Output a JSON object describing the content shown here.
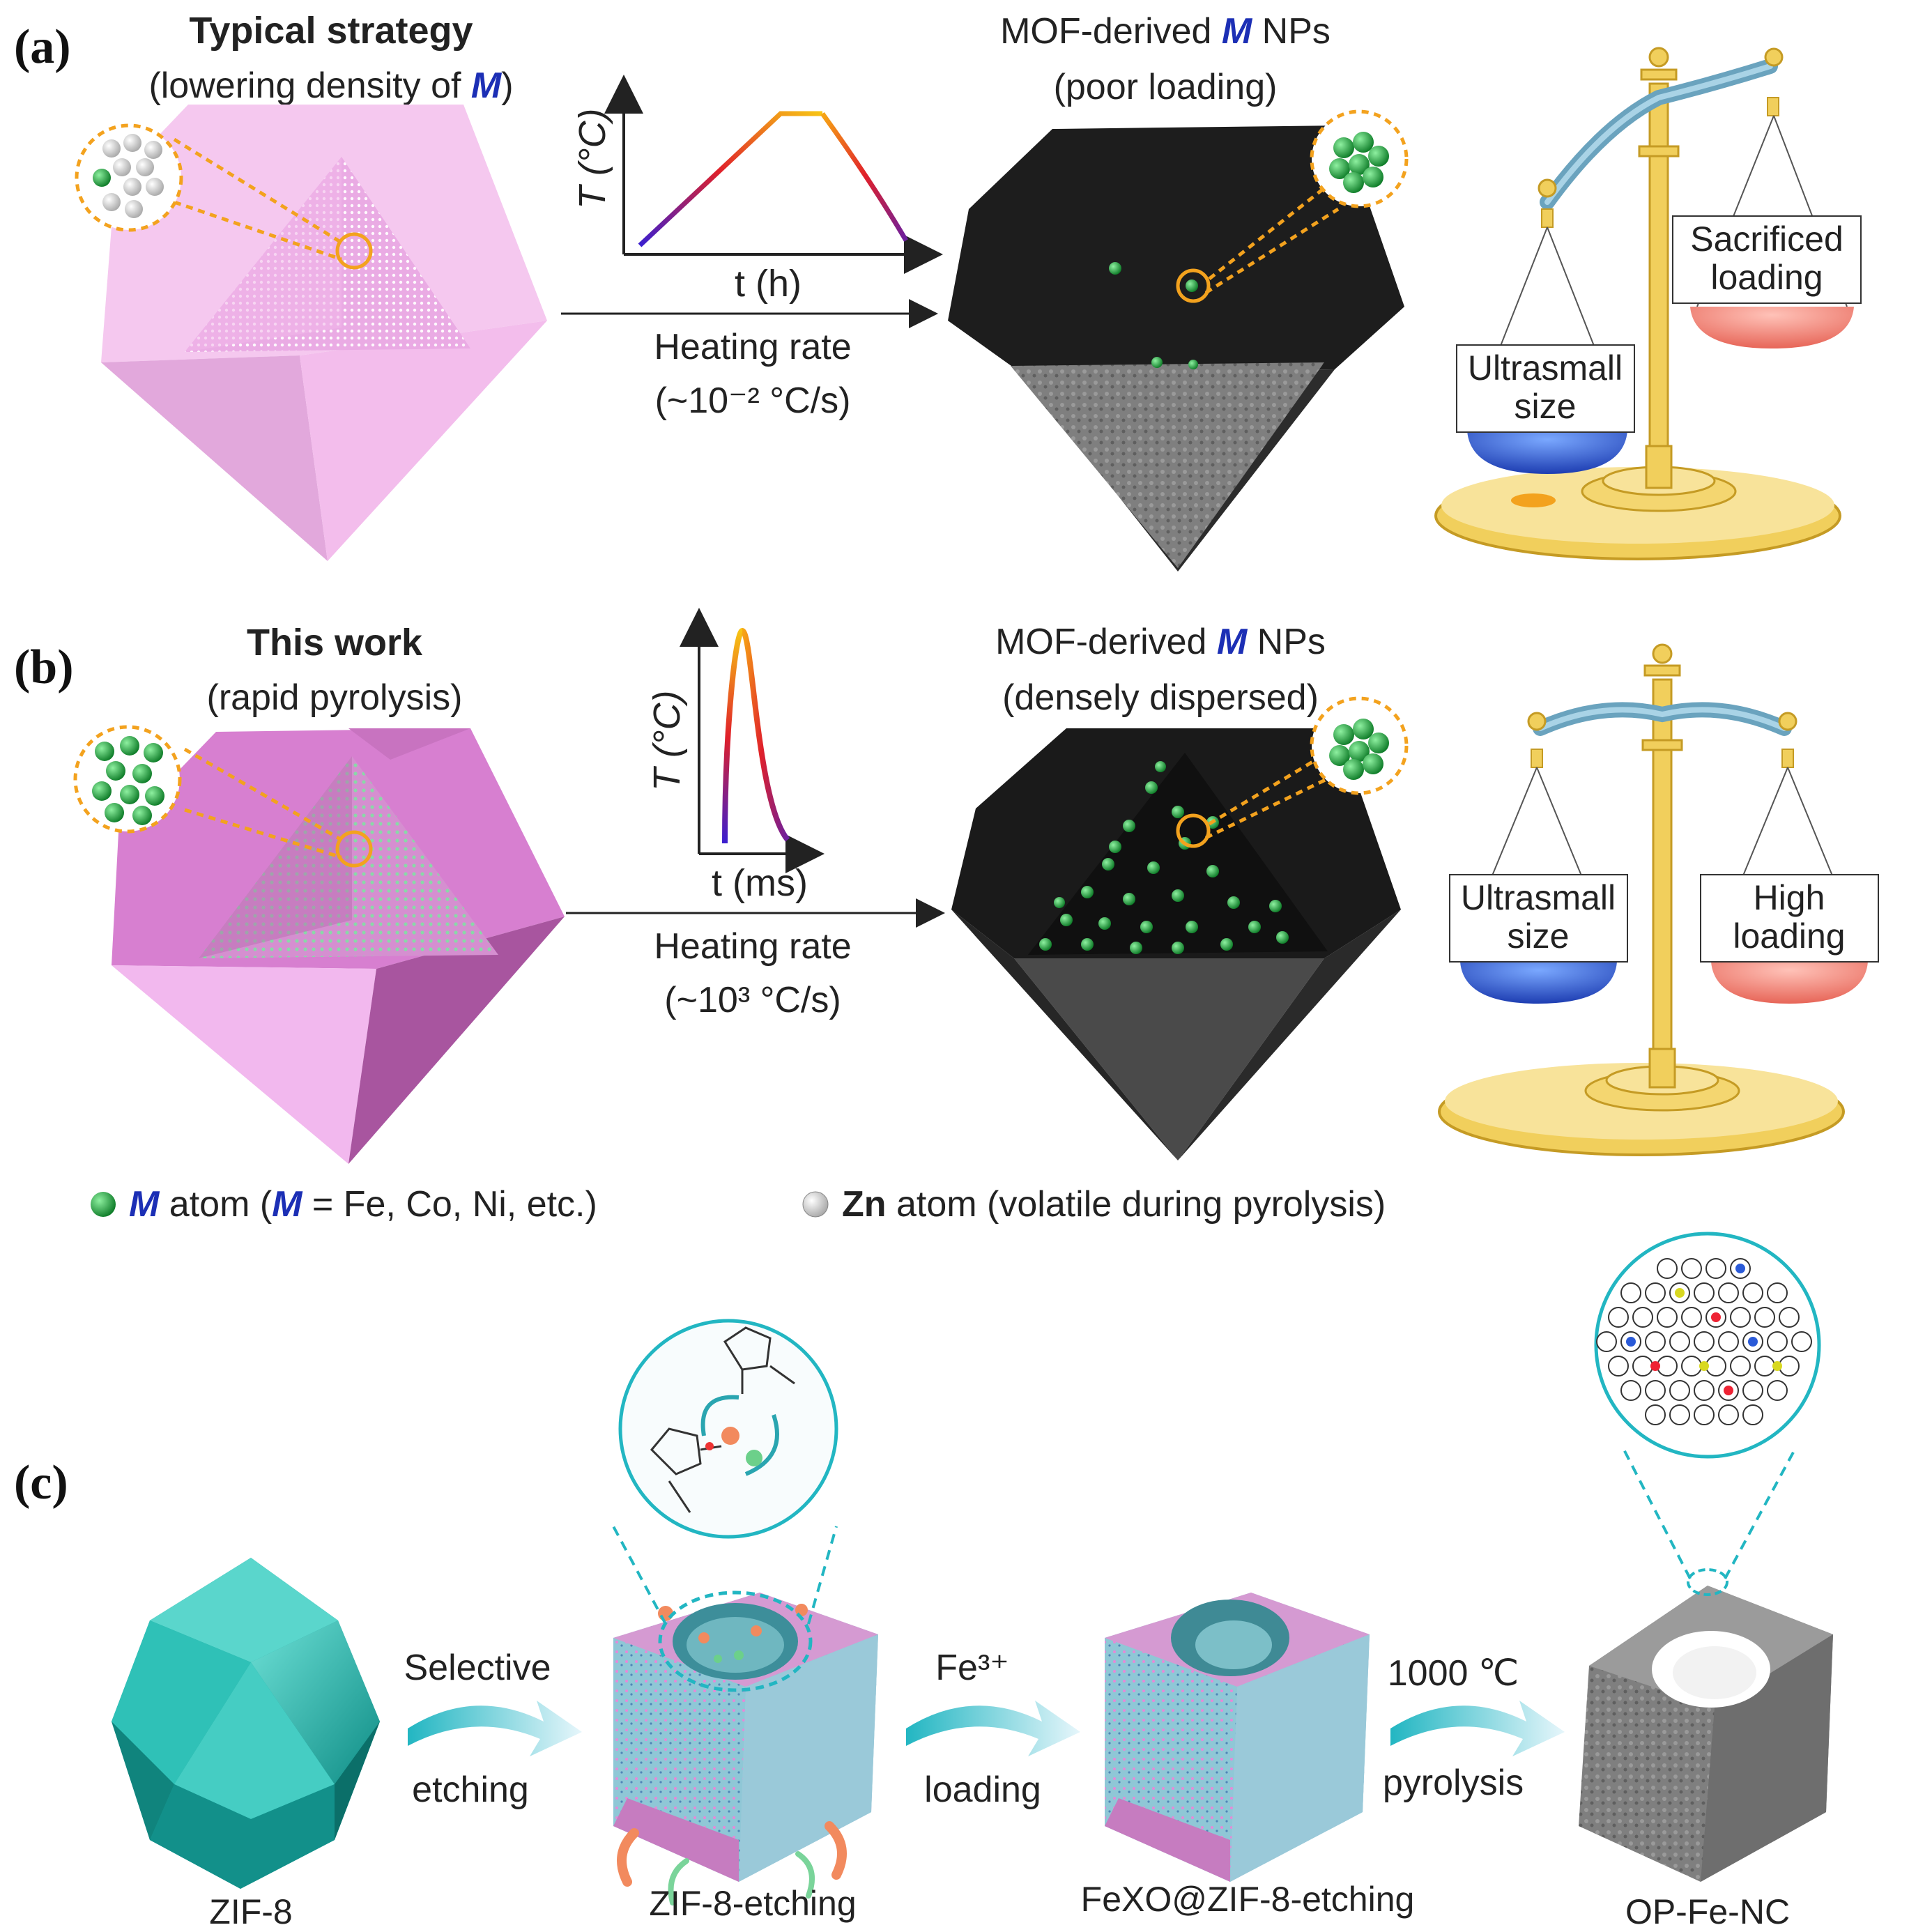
{
  "panel_a": {
    "label": "(a)",
    "strategy_title": "Typical strategy",
    "strategy_sub_pre": "(lowering density of ",
    "strategy_sub_m": "M",
    "strategy_sub_post": ")",
    "axis_y": "T (°C)",
    "axis_x": "t (h)",
    "heating_label": "Heating rate",
    "heating_value": "(~10⁻² °C/s)",
    "product_title_pre": "MOF-derived ",
    "product_title_m": "M",
    "product_title_post": " NPs",
    "product_sub": "(poor loading)",
    "scale_left_line1": "Ultrasmall",
    "scale_left_line2": "size",
    "scale_right_line1": "Sacrificed",
    "scale_right_line2": "loading"
  },
  "panel_b": {
    "label": "(b)",
    "strategy_title": "This work",
    "strategy_sub": "(rapid pyrolysis)",
    "axis_y": "T (°C)",
    "axis_x": "t (ms)",
    "heating_label": "Heating rate",
    "heating_value": "(~10³ °C/s)",
    "product_title_pre": "MOF-derived ",
    "product_title_m": "M",
    "product_title_post": " NPs",
    "product_sub": "(densely dispersed)",
    "scale_left_line1": "Ultrasmall",
    "scale_left_line2": "size",
    "scale_right_line1": "High",
    "scale_right_line2": "loading"
  },
  "legend": {
    "m_symbol": "M",
    "m_text_pre": " atom (",
    "m_symbol2": "M",
    "m_text_post": " = Fe, Co, Ni, etc.)",
    "zn_symbol": "Zn",
    "zn_text": " atom (volatile during pyrolysis)"
  },
  "panel_c": {
    "label": "(c)",
    "step1_top": "Selective",
    "step1_bottom": "etching",
    "step2_top": "Fe³⁺",
    "step2_bottom": "loading",
    "step3_top": "1000 ℃",
    "step3_bottom": "pyrolysis",
    "names": [
      "ZIF-8",
      "ZIF-8-etching",
      "FeXO@ZIF-8-etching",
      "OP-Fe-NC"
    ]
  },
  "colors": {
    "pink_light": "#f5c8ef",
    "pink_dark": "#c98bc2",
    "magenta": "#d77fd0",
    "teal": "#2bbab0",
    "green_atom": "#1f9d3a",
    "m_blue": "#1c2fb5",
    "orange": "#f3a21e",
    "gold": "#f1cf5c",
    "blue_pan": "#1f4fd1",
    "red_pan": "#f08a80"
  }
}
